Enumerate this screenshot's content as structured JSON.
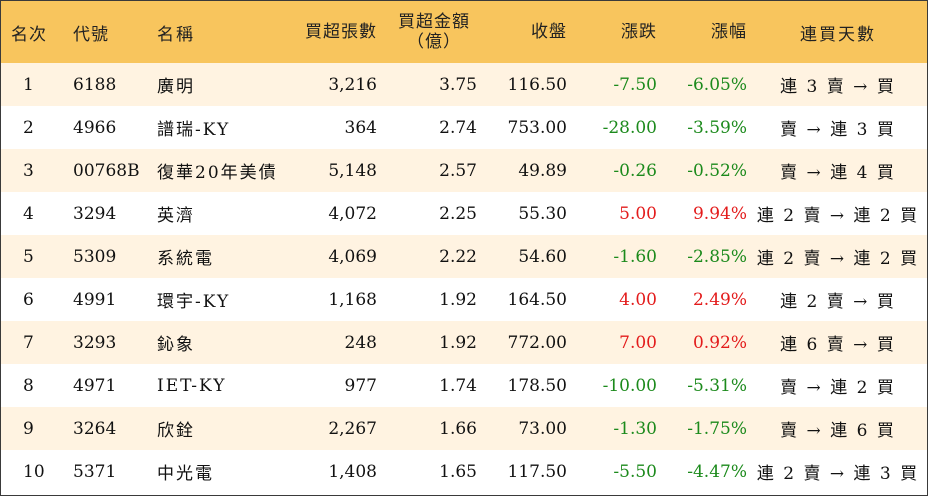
{
  "table": {
    "headers": {
      "rank": "名次",
      "code": "代號",
      "name": "名稱",
      "buy_lots": "買超張數",
      "buy_amount_line1": "買超金額",
      "buy_amount_line2": "（億）",
      "close": "收盤",
      "change": "漲跌",
      "change_pct": "漲幅",
      "streak": "連買天數"
    },
    "rows": [
      {
        "rank": "1",
        "code": "6188",
        "name": "廣明",
        "buy_lots": "3,216",
        "buy_amount": "3.75",
        "close": "116.50",
        "change": "-7.50",
        "change_pct": "-6.05%",
        "streak": "連 3 賣 → 買",
        "direction": "down"
      },
      {
        "rank": "2",
        "code": "4966",
        "name": "譜瑞-KY",
        "buy_lots": "364",
        "buy_amount": "2.74",
        "close": "753.00",
        "change": "-28.00",
        "change_pct": "-3.59%",
        "streak": "賣 → 連 3 買",
        "direction": "down"
      },
      {
        "rank": "3",
        "code": "00768B",
        "name": "復華20年美債",
        "buy_lots": "5,148",
        "buy_amount": "2.57",
        "close": "49.89",
        "change": "-0.26",
        "change_pct": "-0.52%",
        "streak": "賣 → 連 4 買",
        "direction": "down"
      },
      {
        "rank": "4",
        "code": "3294",
        "name": "英濟",
        "buy_lots": "4,072",
        "buy_amount": "2.25",
        "close": "55.30",
        "change": "5.00",
        "change_pct": "9.94%",
        "streak": "連 2 賣 → 連 2 買",
        "direction": "up"
      },
      {
        "rank": "5",
        "code": "5309",
        "name": "系統電",
        "buy_lots": "4,069",
        "buy_amount": "2.22",
        "close": "54.60",
        "change": "-1.60",
        "change_pct": "-2.85%",
        "streak": "連 2 賣 → 連 2 買",
        "direction": "down"
      },
      {
        "rank": "6",
        "code": "4991",
        "name": "環宇-KY",
        "buy_lots": "1,168",
        "buy_amount": "1.92",
        "close": "164.50",
        "change": "4.00",
        "change_pct": "2.49%",
        "streak": "連 2 賣 → 買",
        "direction": "up"
      },
      {
        "rank": "7",
        "code": "3293",
        "name": "鈊象",
        "buy_lots": "248",
        "buy_amount": "1.92",
        "close": "772.00",
        "change": "7.00",
        "change_pct": "0.92%",
        "streak": "連 6 賣 → 買",
        "direction": "up"
      },
      {
        "rank": "8",
        "code": "4971",
        "name": "IET-KY",
        "buy_lots": "977",
        "buy_amount": "1.74",
        "close": "178.50",
        "change": "-10.00",
        "change_pct": "-5.31%",
        "streak": "賣 → 連 2 買",
        "direction": "down"
      },
      {
        "rank": "9",
        "code": "3264",
        "name": "欣銓",
        "buy_lots": "2,267",
        "buy_amount": "1.66",
        "close": "73.00",
        "change": "-1.30",
        "change_pct": "-1.75%",
        "streak": "賣 → 連 6 買",
        "direction": "down"
      },
      {
        "rank": "10",
        "code": "5371",
        "name": "中光電",
        "buy_lots": "1,408",
        "buy_amount": "1.65",
        "close": "117.50",
        "change": "-5.50",
        "change_pct": "-4.47%",
        "streak": "連 2 賣 → 連 3 買",
        "direction": "down"
      }
    ],
    "colors": {
      "header_bg": "#f8c55d",
      "odd_row_bg": "#fff3e1",
      "even_row_bg": "#ffffff",
      "up": "#e31b1b",
      "down": "#1c8a1c"
    }
  }
}
